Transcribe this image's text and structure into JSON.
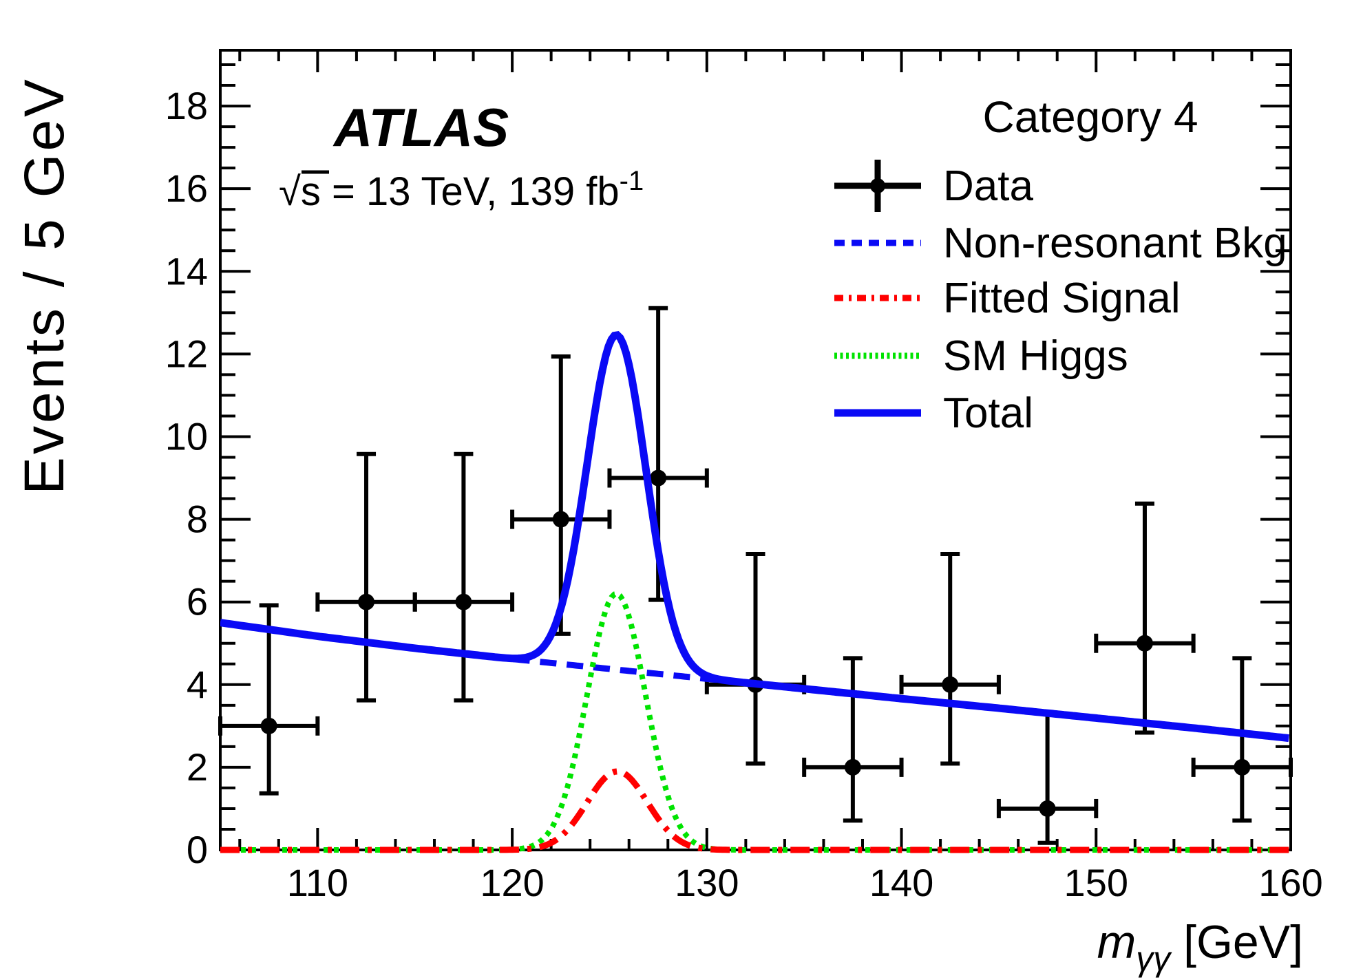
{
  "figure": {
    "experiment": "ATLAS",
    "lumi": {
      "radical": "√",
      "text": "s = 13 TeV, 139 fb",
      "sup": "-1"
    },
    "category": "Category 4",
    "x_title": {
      "var": "m",
      "sub": "γγ",
      "unit": " [GeV]"
    },
    "y_title": "Events / 5 GeV"
  },
  "legend": {
    "items": [
      {
        "label": "Data",
        "marker": "data",
        "color": "#000000"
      },
      {
        "label": "Non-resonant Bkg",
        "marker": "dashed",
        "color": "#0a0af5"
      },
      {
        "label": "Fitted Signal",
        "marker": "dashdot",
        "color": "#ff0000"
      },
      {
        "label": "SM Higgs",
        "marker": "dotted",
        "color": "#00e300"
      },
      {
        "label": "Total",
        "marker": "solid",
        "color": "#0a0af5"
      }
    ]
  },
  "chart_data": {
    "type": "line",
    "title": "Category 4",
    "xlabel": "m_gammagamma [GeV]",
    "ylabel": "Events / 5 GeV",
    "xlim": [
      105,
      160
    ],
    "ylim": [
      0,
      19.35
    ],
    "x_major_ticks": [
      110,
      120,
      130,
      140,
      150,
      160
    ],
    "x_minor_step": 2,
    "y_major_ticks": [
      0,
      2,
      4,
      6,
      8,
      10,
      12,
      14,
      16,
      18
    ],
    "y_minor_step": 0.5,
    "grid": false,
    "legend_position": "top-right",
    "data_points": {
      "name": "Data",
      "color": "#000000",
      "bin_half_width": 2.5,
      "x": [
        107.5,
        112.5,
        117.5,
        122.5,
        127.5,
        132.5,
        137.5,
        142.5,
        147.5,
        152.5,
        157.5
      ],
      "y": [
        3,
        6,
        6,
        8,
        9,
        4,
        2,
        4,
        1,
        5,
        2
      ],
      "yerr_minus": [
        1.63,
        2.38,
        2.38,
        2.77,
        2.95,
        1.91,
        1.29,
        1.91,
        0.83,
        2.16,
        1.29
      ],
      "yerr_plus": [
        2.92,
        3.58,
        3.58,
        3.94,
        4.11,
        3.16,
        2.64,
        3.16,
        2.3,
        3.38,
        2.64
      ]
    },
    "series": [
      {
        "name": "Non-resonant Bkg",
        "style": "dashed",
        "color": "#0a0af5",
        "width": 9,
        "x": [
          105,
          110,
          115,
          120,
          125,
          130,
          135,
          140,
          145,
          150,
          155,
          160
        ],
        "y": [
          5.5,
          5.17,
          4.88,
          4.62,
          4.38,
          4.14,
          3.9,
          3.66,
          3.43,
          3.19,
          2.95,
          2.7
        ]
      },
      {
        "name": "SM Higgs",
        "style": "dotted",
        "color": "#00e300",
        "width": 8,
        "gauss": {
          "center": 125.35,
          "sigma": 1.5,
          "amplitude": 6.2
        }
      },
      {
        "name": "Fitted Signal",
        "style": "dashdot",
        "color": "#ff0000",
        "width": 9,
        "gauss": {
          "center": 125.4,
          "sigma": 1.55,
          "amplitude": 1.9
        }
      },
      {
        "name": "Total",
        "style": "solid",
        "color": "#0a0af5",
        "width": 11,
        "sum_of": [
          "Non-resonant Bkg",
          "SM Higgs",
          "Fitted Signal"
        ],
        "peak": {
          "x": 125.35,
          "y": 12.4
        }
      }
    ]
  }
}
